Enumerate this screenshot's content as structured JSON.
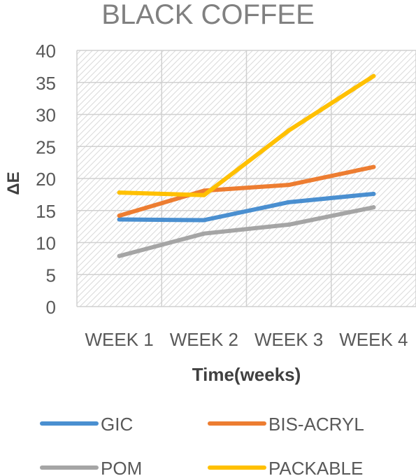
{
  "chart_data": {
    "type": "line",
    "title": "BLACK COFFEE",
    "xlabel": "Time(weeks)",
    "ylabel": "ΔE",
    "categories": [
      "WEEK 1",
      "WEEK 2",
      "WEEK 3",
      "WEEK 4"
    ],
    "ylim": [
      0,
      40
    ],
    "yticks": [
      0,
      5,
      10,
      15,
      20,
      25,
      30,
      35,
      40
    ],
    "grid": true,
    "legend_position": "bottom",
    "series": [
      {
        "name": "GIC",
        "color": "#4A8FD0",
        "values": [
          13.6,
          13.5,
          16.3,
          17.6
        ]
      },
      {
        "name": "BIS-ACRYL",
        "color": "#ED7D31",
        "values": [
          14.2,
          18.1,
          19.0,
          21.8
        ]
      },
      {
        "name": "POM",
        "color": "#A5A5A5",
        "values": [
          7.9,
          11.4,
          12.8,
          15.5
        ]
      },
      {
        "name": "PACKABLE",
        "color": "#FFC000",
        "values": [
          17.8,
          17.4,
          27.5,
          36.0
        ]
      }
    ]
  }
}
